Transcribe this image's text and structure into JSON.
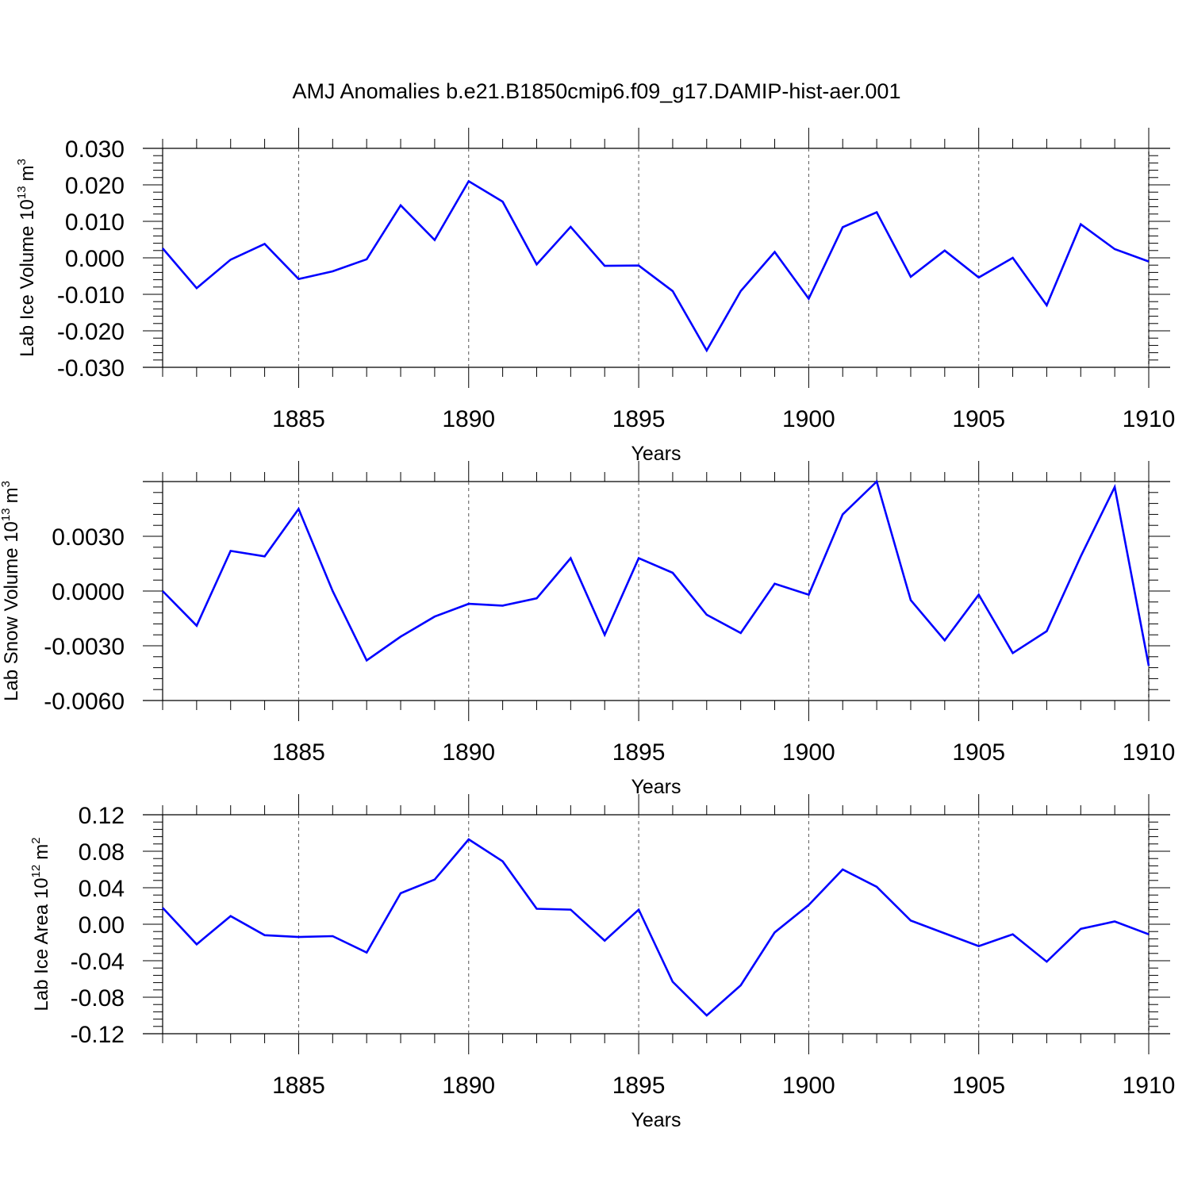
{
  "title": "AMJ Anomalies b.e21.B1850cmip6.f09_g17.DAMIP-hist-aer.001",
  "line_color": "#0000ff",
  "chart_data": [
    {
      "type": "line",
      "title": "",
      "xlabel": "Years",
      "ylabel_main": "Lab Ice Volume 10",
      "ylabel_exp": "13",
      "ylabel_unit": "m",
      "ylabel_unit_exp": "3",
      "xlim": [
        1881,
        1910
      ],
      "ylim": [
        -0.03,
        0.03
      ],
      "x_ticks": [
        "1885",
        "1890",
        "1895",
        "1900",
        "1905",
        "1910"
      ],
      "y_ticks": [
        "-0.030",
        "-0.020",
        "-0.010",
        "0.000",
        "0.010",
        "0.020",
        "0.030"
      ],
      "grid": "vertical dashed at major x ticks",
      "series": [
        {
          "x": [
            1881,
            1882,
            1883,
            1884,
            1885,
            1886,
            1887,
            1888,
            1889,
            1890,
            1891,
            1892,
            1893,
            1894,
            1895,
            1896,
            1897,
            1898,
            1899,
            1900,
            1901,
            1902,
            1903,
            1904,
            1905,
            1906,
            1907,
            1908,
            1909,
            1910
          ],
          "values": [
            0.0026,
            -0.0083,
            -0.0005,
            0.0038,
            -0.0058,
            -0.0037,
            -0.0004,
            0.0144,
            0.0049,
            0.021,
            0.0154,
            -0.0018,
            0.0085,
            -0.0022,
            -0.0021,
            -0.0091,
            -0.0254,
            -0.0091,
            0.0016,
            -0.0112,
            0.0084,
            0.0125,
            -0.0052,
            0.002,
            -0.0054,
            0.0,
            -0.013,
            0.0092,
            0.0024,
            -0.001
          ]
        }
      ]
    },
    {
      "type": "line",
      "title": "",
      "xlabel": "Years",
      "ylabel_main": "Lab Snow Volume 10",
      "ylabel_exp": "13",
      "ylabel_unit": "m",
      "ylabel_unit_exp": "3",
      "xlim": [
        1881,
        1910
      ],
      "ylim": [
        -0.006,
        0.006
      ],
      "x_ticks": [
        "1885",
        "1890",
        "1895",
        "1900",
        "1905",
        "1910"
      ],
      "y_ticks": [
        "-0.0060",
        "-0.0030",
        "0.0000",
        "0.0030"
      ],
      "grid": "vertical dashed at major x ticks",
      "series": [
        {
          "x": [
            1881,
            1882,
            1883,
            1884,
            1885,
            1886,
            1887,
            1888,
            1889,
            1890,
            1891,
            1892,
            1893,
            1894,
            1895,
            1896,
            1897,
            1898,
            1899,
            1900,
            1901,
            1902,
            1903,
            1904,
            1905,
            1906,
            1907,
            1908,
            1909,
            1910
          ],
          "values": [
            0.0,
            -0.0019,
            0.0022,
            0.0019,
            0.0045,
            0.0,
            -0.0038,
            -0.0025,
            -0.0014,
            -0.0007,
            -0.0008,
            -0.0004,
            0.0018,
            -0.0024,
            0.0018,
            0.001,
            -0.0013,
            -0.0023,
            0.0004,
            -0.0002,
            0.0042,
            0.006,
            -0.0005,
            -0.0027,
            -0.0002,
            -0.0034,
            -0.0022,
            0.0019,
            0.0057,
            -0.0041
          ]
        }
      ]
    },
    {
      "type": "line",
      "title": "",
      "xlabel": "Years",
      "ylabel_main": "Lab Ice Area 10",
      "ylabel_exp": "12",
      "ylabel_unit": "m",
      "ylabel_unit_exp": "2",
      "xlim": [
        1881,
        1910
      ],
      "ylim": [
        -0.12,
        0.12
      ],
      "x_ticks": [
        "1885",
        "1890",
        "1895",
        "1900",
        "1905",
        "1910"
      ],
      "y_ticks": [
        "-0.12",
        "-0.08",
        "-0.04",
        "0.00",
        "0.04",
        "0.08",
        "0.12"
      ],
      "grid": "vertical dashed at major x ticks",
      "series": [
        {
          "x": [
            1881,
            1882,
            1883,
            1884,
            1885,
            1886,
            1887,
            1888,
            1889,
            1890,
            1891,
            1892,
            1893,
            1894,
            1895,
            1896,
            1897,
            1898,
            1899,
            1900,
            1901,
            1902,
            1903,
            1904,
            1905,
            1906,
            1907,
            1908,
            1909,
            1910
          ],
          "values": [
            0.018,
            -0.022,
            0.009,
            -0.012,
            -0.014,
            -0.013,
            -0.031,
            0.034,
            0.049,
            0.093,
            0.069,
            0.017,
            0.016,
            -0.018,
            0.016,
            -0.063,
            -0.1,
            -0.067,
            -0.009,
            0.021,
            0.06,
            0.041,
            0.004,
            -0.01,
            -0.024,
            -0.011,
            -0.041,
            -0.005,
            0.003,
            -0.011
          ]
        }
      ]
    }
  ]
}
